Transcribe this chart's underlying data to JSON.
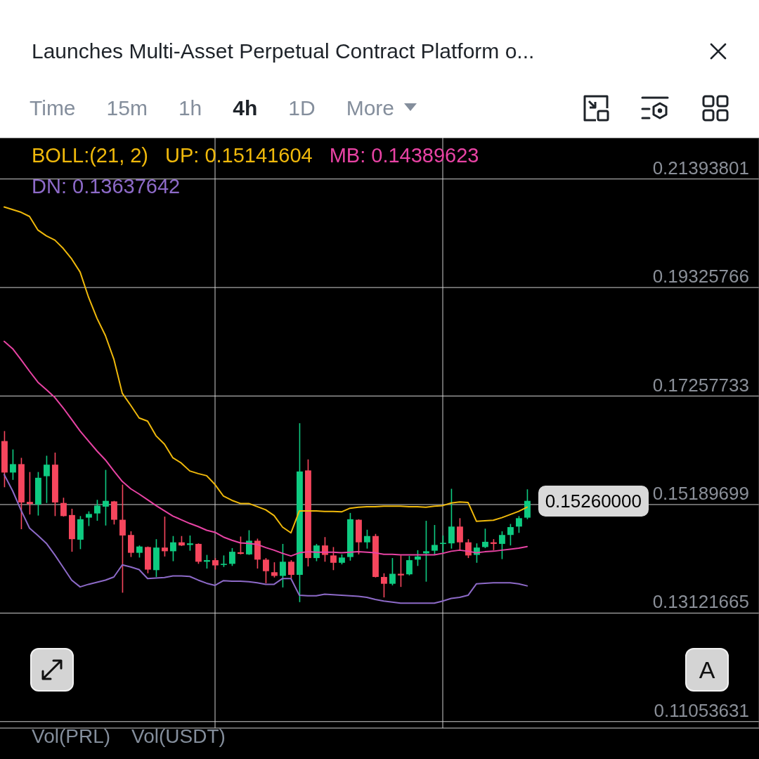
{
  "chart_data": {
    "type": "candlestick",
    "title": "Launches Multi-Asset Perpetual Contract Platform o...",
    "legend_title": "BOLL:(21, 2)",
    "categories": [
      null,
      null,
      null,
      null,
      null,
      null,
      null,
      null,
      null,
      null,
      null,
      null,
      null,
      null,
      null,
      null,
      null,
      null,
      null,
      null,
      null,
      null,
      null,
      null,
      null,
      null,
      null,
      null,
      null,
      null,
      null,
      null,
      null,
      null,
      null,
      null,
      null,
      null,
      null,
      null,
      null,
      null,
      null,
      null,
      null,
      null,
      null,
      null,
      null,
      null,
      null,
      null,
      null,
      null,
      null,
      null,
      null,
      null,
      null,
      null,
      null,
      null,
      null
    ],
    "ohlc": [
      [
        0.164,
        0.1659,
        0.1552,
        0.158
      ],
      [
        0.158,
        0.1624,
        0.1566,
        0.1596
      ],
      [
        0.1596,
        0.1608,
        0.1472,
        0.1523
      ],
      [
        0.1524,
        0.1581,
        0.15,
        0.152
      ],
      [
        0.1519,
        0.1581,
        0.1498,
        0.157
      ],
      [
        0.1573,
        0.1612,
        0.1522,
        0.1595
      ],
      [
        0.1595,
        0.1618,
        0.1497,
        0.1523
      ],
      [
        0.1522,
        0.1532,
        0.1496,
        0.1497
      ],
      [
        0.1499,
        0.1511,
        0.1429,
        0.1453
      ],
      [
        0.1452,
        0.1497,
        0.1434,
        0.1491
      ],
      [
        0.1494,
        0.1506,
        0.1478,
        0.1501
      ],
      [
        0.1502,
        0.1528,
        0.1488,
        0.1517
      ],
      [
        0.1515,
        0.1585,
        0.1479,
        0.1526
      ],
      [
        0.1525,
        0.1526,
        0.1481,
        0.149
      ],
      [
        0.149,
        0.1557,
        0.1351,
        0.146
      ],
      [
        0.1461,
        0.1468,
        0.1419,
        0.1427
      ],
      [
        0.1427,
        0.1441,
        0.1418,
        0.1439
      ],
      [
        0.1438,
        0.1439,
        0.1388,
        0.1395
      ],
      [
        0.1394,
        0.1453,
        0.1381,
        0.1437
      ],
      [
        0.1437,
        0.1496,
        0.142,
        0.143
      ],
      [
        0.143,
        0.1459,
        0.1411,
        0.1447
      ],
      [
        0.1447,
        0.1459,
        0.144,
        0.1441
      ],
      [
        0.1442,
        0.146,
        0.1431,
        0.1445
      ],
      [
        0.1444,
        0.1445,
        0.1406,
        0.141
      ],
      [
        0.141,
        0.1423,
        0.1397,
        0.1413
      ],
      [
        0.1413,
        0.1417,
        0.1395,
        0.1403
      ],
      [
        0.1404,
        0.1422,
        0.14,
        0.1406
      ],
      [
        0.1406,
        0.1436,
        0.1402,
        0.1429
      ],
      [
        0.1428,
        0.1458,
        0.1424,
        0.1425
      ],
      [
        0.1424,
        0.147,
        0.1423,
        0.145
      ],
      [
        0.145,
        0.1454,
        0.1397,
        0.1414
      ],
      [
        0.1414,
        0.1417,
        0.1369,
        0.1392
      ],
      [
        0.139,
        0.1409,
        0.138,
        0.1383
      ],
      [
        0.1383,
        0.1444,
        0.1361,
        0.141
      ],
      [
        0.141,
        0.1413,
        0.1378,
        0.1385
      ],
      [
        0.1385,
        0.1674,
        0.1333,
        0.1582
      ],
      [
        0.1584,
        0.1605,
        0.1401,
        0.1417
      ],
      [
        0.1417,
        0.1444,
        0.1411,
        0.1441
      ],
      [
        0.1441,
        0.1457,
        0.141,
        0.1423
      ],
      [
        0.1422,
        0.1438,
        0.1394,
        0.1408
      ],
      [
        0.1408,
        0.1424,
        0.1405,
        0.1418
      ],
      [
        0.1419,
        0.1503,
        0.1412,
        0.1491
      ],
      [
        0.149,
        0.1491,
        0.1424,
        0.1447
      ],
      [
        0.1447,
        0.1471,
        0.1435,
        0.1459
      ],
      [
        0.1459,
        0.1463,
        0.138,
        0.1381
      ],
      [
        0.1381,
        0.1388,
        0.1342,
        0.1368
      ],
      [
        0.1368,
        0.1417,
        0.1365,
        0.1387
      ],
      [
        0.1387,
        0.1422,
        0.1362,
        0.1384
      ],
      [
        0.1386,
        0.1421,
        0.1384,
        0.1413
      ],
      [
        0.1414,
        0.1432,
        0.1402,
        0.142
      ],
      [
        0.1426,
        0.1488,
        0.1372,
        0.143
      ],
      [
        0.1431,
        0.148,
        0.1424,
        0.1442
      ],
      [
        0.1444,
        0.146,
        0.1427,
        0.1446
      ],
      [
        0.1445,
        0.1549,
        0.1435,
        0.1477
      ],
      [
        0.1477,
        0.1493,
        0.1431,
        0.1447
      ],
      [
        0.1447,
        0.1453,
        0.1417,
        0.1422
      ],
      [
        0.1423,
        0.1445,
        0.1408,
        0.1437
      ],
      [
        0.1438,
        0.1473,
        0.1436,
        0.1448
      ],
      [
        0.1447,
        0.1453,
        0.1432,
        0.1444
      ],
      [
        0.1444,
        0.1468,
        0.1415,
        0.1461
      ],
      [
        0.1461,
        0.1482,
        0.1441,
        0.1476
      ],
      [
        0.1477,
        0.1497,
        0.1465,
        0.1493
      ],
      [
        0.1494,
        0.1548,
        0.1491,
        0.1526
      ]
    ],
    "colors": [
      "#f6465d",
      "#0ecb81",
      "#f6465d",
      "#f6465d",
      "#0ecb81",
      "#0ecb81",
      "#f6465d",
      "#f6465d",
      "#f6465d",
      "#0ecb81",
      "#0ecb81",
      "#0ecb81",
      "#0ecb81",
      "#f6465d",
      "#f6465d",
      "#f6465d",
      "#0ecb81",
      "#f6465d",
      "#0ecb81",
      "#f6465d",
      "#0ecb81",
      "#f6465d",
      "#0ecb81",
      "#f6465d",
      "#0ecb81",
      "#f6465d",
      "#0ecb81",
      "#0ecb81",
      "#f6465d",
      "#0ecb81",
      "#f6465d",
      "#f6465d",
      "#f6465d",
      "#0ecb81",
      "#f6465d",
      "#0ecb81",
      "#f6465d",
      "#0ecb81",
      "#f6465d",
      "#f6465d",
      "#0ecb81",
      "#0ecb81",
      "#f6465d",
      "#0ecb81",
      "#f6465d",
      "#f6465d",
      "#0ecb81",
      "#f6465d",
      "#0ecb81",
      "#0ecb81",
      "#0ecb81",
      "#0ecb81",
      "#0ecb81",
      "#0ecb81",
      "#f6465d",
      "#f6465d",
      "#0ecb81",
      "#0ecb81",
      "#f6465d",
      "#0ecb81",
      "#0ecb81",
      "#0ecb81",
      "#0ecb81"
    ],
    "series": [
      {
        "name": "UP: 0.15141604",
        "type": "line",
        "color": "#f0b90b",
        "values": [
          0.2086,
          0.2081,
          0.2076,
          0.2068,
          0.2042,
          0.2031,
          0.2023,
          0.2007,
          0.1987,
          0.1962,
          0.1914,
          0.1874,
          0.1841,
          0.1796,
          0.1731,
          0.1708,
          0.1684,
          0.1678,
          0.165,
          0.1634,
          0.1608,
          0.1598,
          0.1583,
          0.1578,
          0.1574,
          0.1557,
          0.1535,
          0.1527,
          0.1521,
          0.1521,
          0.1515,
          0.1509,
          0.1498,
          0.1476,
          0.1465,
          0.1507,
          0.1507,
          0.1507,
          0.1506,
          0.1506,
          0.1505,
          0.1512,
          0.1514,
          0.1515,
          0.1515,
          0.1516,
          0.1516,
          0.1516,
          0.1515,
          0.1515,
          0.1514,
          0.1516,
          0.1517,
          0.1522,
          0.1524,
          0.1523,
          0.1487,
          0.1488,
          0.1489,
          0.1494,
          0.15,
          0.1506,
          0.1514
        ]
      },
      {
        "name": "MB: 0.14389623",
        "type": "line",
        "color": "#e843a4",
        "values": [
          0.183,
          0.1816,
          0.1795,
          0.1773,
          0.1752,
          0.1738,
          0.1723,
          0.1703,
          0.1681,
          0.1659,
          0.164,
          0.1621,
          0.1604,
          0.1583,
          0.1563,
          0.1549,
          0.1539,
          0.1528,
          0.1517,
          0.1507,
          0.1497,
          0.149,
          0.1483,
          0.1477,
          0.147,
          0.1466,
          0.1457,
          0.1451,
          0.1446,
          0.1445,
          0.1443,
          0.1437,
          0.1432,
          0.1426,
          0.1421,
          0.1427,
          0.1429,
          0.1428,
          0.1428,
          0.1428,
          0.1427,
          0.1428,
          0.1429,
          0.1428,
          0.1427,
          0.1424,
          0.1424,
          0.1423,
          0.1423,
          0.1423,
          0.1423,
          0.1423,
          0.1426,
          0.143,
          0.1432,
          0.143,
          0.1427,
          0.1429,
          0.143,
          0.1432,
          0.1434,
          0.1436,
          0.1439
        ]
      },
      {
        "name": "DN: 0.13637642",
        "type": "line",
        "color": "#8d6ac8",
        "values": [
          0.1576,
          0.1545,
          0.1508,
          0.1474,
          0.146,
          0.1445,
          0.1423,
          0.1399,
          0.1375,
          0.1362,
          0.1367,
          0.1371,
          0.1375,
          0.1381,
          0.1404,
          0.14,
          0.1395,
          0.1378,
          0.1379,
          0.138,
          0.1383,
          0.1383,
          0.1382,
          0.1375,
          0.1369,
          0.1365,
          0.1374,
          0.1373,
          0.1373,
          0.1372,
          0.137,
          0.1367,
          0.1367,
          0.1378,
          0.1378,
          0.1346,
          0.1345,
          0.1345,
          0.1348,
          0.1347,
          0.1346,
          0.1345,
          0.1344,
          0.1342,
          0.1338,
          0.1335,
          0.1333,
          0.1331,
          0.1331,
          0.1331,
          0.1331,
          0.1331,
          0.1335,
          0.134,
          0.1342,
          0.1346,
          0.1368,
          0.1369,
          0.137,
          0.137,
          0.137,
          0.1368,
          0.1364
        ]
      }
    ],
    "ylim": [
      0.1093,
      0.2218
    ],
    "yticks": [
      0.21393801,
      0.19325766,
      0.17257733,
      0.15189699,
      0.13121665,
      0.11053631
    ],
    "grid": true,
    "legend": "top left",
    "tick_labels": "y",
    "annotations": [
      "Time",
      "15m",
      "1h",
      "4h",
      "1D",
      "More",
      "A",
      "Vol(PRL)",
      "Vol(USDT)",
      "0.15260000"
    ]
  }
}
